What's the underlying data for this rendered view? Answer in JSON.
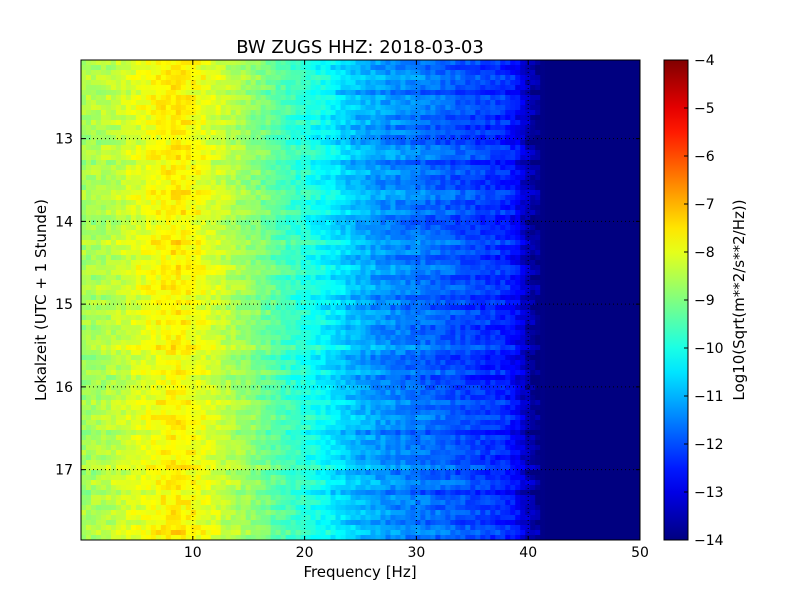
{
  "chart_data": {
    "type": "heatmap",
    "title": "BW ZUGS HHZ: 2018-03-03",
    "xlabel": "Frequency [Hz]",
    "ylabel": "Lokalzeit (UTC + 1 Stunde)",
    "colorbar_label": "Log10(Sqrt(m**2/s**2/Hz))",
    "xlim": [
      0,
      50
    ],
    "ylim": [
      17.85,
      12.05
    ],
    "clim": [
      -14,
      -4
    ],
    "colormap": "jet",
    "grid": true,
    "x_ticks": [
      {
        "value": 10,
        "label": "10"
      },
      {
        "value": 20,
        "label": "20"
      },
      {
        "value": 30,
        "label": "30"
      },
      {
        "value": 40,
        "label": "40"
      },
      {
        "value": 50,
        "label": "50"
      }
    ],
    "y_ticks": [
      {
        "value": 13,
        "label": "13"
      },
      {
        "value": 14,
        "label": "14"
      },
      {
        "value": 15,
        "label": "15"
      },
      {
        "value": 16,
        "label": "16"
      },
      {
        "value": 17,
        "label": "17"
      }
    ],
    "colorbar_ticks": [
      {
        "value": -4,
        "label": "−4"
      },
      {
        "value": -5,
        "label": "−5"
      },
      {
        "value": -6,
        "label": "−6"
      },
      {
        "value": -7,
        "label": "−7"
      },
      {
        "value": -8,
        "label": "−8"
      },
      {
        "value": -9,
        "label": "−9"
      },
      {
        "value": -10,
        "label": "−10"
      },
      {
        "value": -11,
        "label": "−11"
      },
      {
        "value": -12,
        "label": "−12"
      },
      {
        "value": -13,
        "label": "−13"
      },
      {
        "value": -14,
        "label": "−14"
      }
    ],
    "spectrum_profile": {
      "frequency": [
        0,
        1,
        3,
        5,
        7,
        8.5,
        10,
        12,
        14,
        16,
        18,
        20,
        22,
        24,
        25,
        27,
        30,
        33,
        36,
        38,
        39,
        40,
        41,
        42,
        45,
        50
      ],
      "level": [
        -8.7,
        -8.6,
        -8.4,
        -8.1,
        -7.8,
        -7.6,
        -7.8,
        -8.2,
        -8.6,
        -9.0,
        -9.5,
        -9.9,
        -10.3,
        -10.8,
        -11.0,
        -11.3,
        -11.6,
        -11.9,
        -12.2,
        -12.4,
        -12.8,
        -13.5,
        -13.9,
        -14.0,
        -14.0,
        -14.0
      ]
    }
  }
}
